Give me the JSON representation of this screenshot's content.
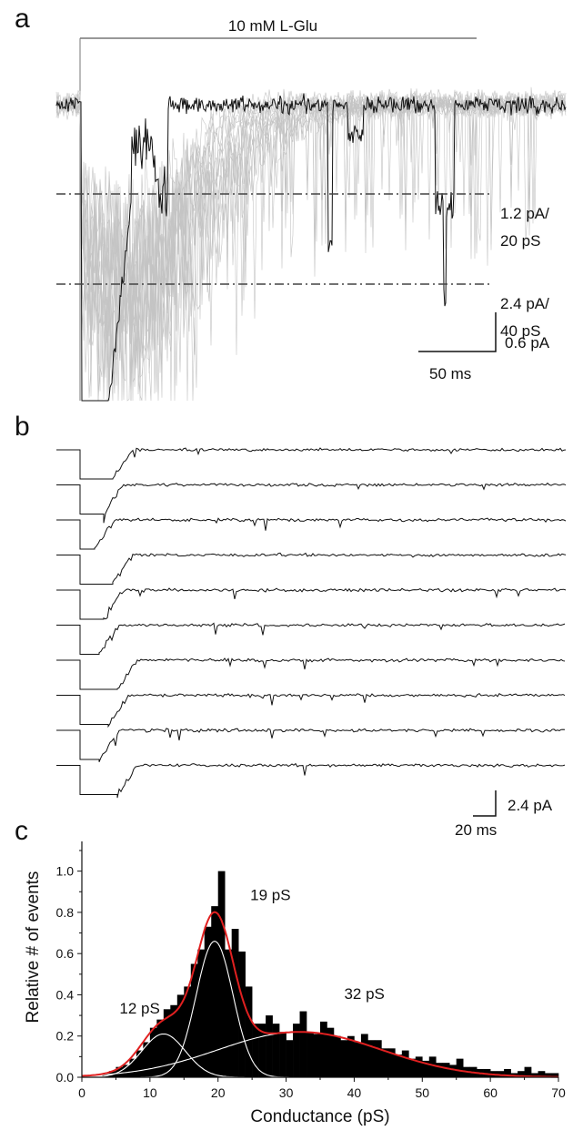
{
  "panel_a": {
    "letter": "a",
    "stim_label": "10 mM L-Glu",
    "level1": "1.2 pA/",
    "level1b": "20 pS",
    "level2": "2.4 pA/",
    "level2b": "40 pS",
    "scale_y": "0.6 pA",
    "scale_x": "50 ms",
    "colors": {
      "trace": "#111111",
      "overlay": "#b8b8b8",
      "dashline": "#444444"
    }
  },
  "panel_b": {
    "letter": "b",
    "sweep_count": 10,
    "scale_y": "2.4 pA",
    "scale_x": "20 ms"
  },
  "panel_c": {
    "letter": "c"
  },
  "chart_data": {
    "type": "bar",
    "xlabel": "Conductance (pS)",
    "ylabel": "Relative # of events",
    "xlim": [
      0,
      70
    ],
    "ylim": [
      0,
      1.1
    ],
    "xticks": [
      0,
      10,
      20,
      30,
      40,
      50,
      60,
      70
    ],
    "yticks": [
      0.0,
      0.2,
      0.4,
      0.6,
      0.8,
      1.0
    ],
    "ytick_labels": [
      "0.0",
      "0.2",
      "0.4",
      "0.6",
      "0.8",
      "1.0"
    ],
    "bin_width": 1,
    "x": [
      3,
      4,
      5,
      6,
      7,
      8,
      9,
      10,
      11,
      12,
      13,
      14,
      15,
      16,
      17,
      18,
      19,
      20,
      21,
      22,
      23,
      24,
      25,
      26,
      27,
      28,
      29,
      30,
      31,
      32,
      33,
      34,
      35,
      36,
      37,
      38,
      39,
      40,
      41,
      42,
      43,
      44,
      45,
      46,
      47,
      48,
      49,
      50,
      51,
      52,
      53,
      54,
      55,
      56,
      57,
      58,
      59,
      60,
      61,
      62,
      63,
      64,
      65,
      66,
      67,
      68,
      69
    ],
    "values": [
      0.02,
      0.03,
      0.05,
      0.06,
      0.09,
      0.13,
      0.17,
      0.24,
      0.28,
      0.33,
      0.35,
      0.4,
      0.44,
      0.55,
      0.62,
      0.73,
      0.83,
      1.0,
      0.62,
      0.72,
      0.61,
      0.44,
      0.26,
      0.26,
      0.3,
      0.26,
      0.22,
      0.18,
      0.26,
      0.32,
      0.22,
      0.21,
      0.27,
      0.24,
      0.2,
      0.18,
      0.2,
      0.17,
      0.21,
      0.18,
      0.18,
      0.14,
      0.14,
      0.11,
      0.13,
      0.09,
      0.1,
      0.08,
      0.1,
      0.07,
      0.07,
      0.06,
      0.09,
      0.05,
      0.05,
      0.04,
      0.04,
      0.03,
      0.03,
      0.04,
      0.02,
      0.03,
      0.05,
      0.02,
      0.03,
      0.02,
      0.02
    ],
    "fit": {
      "total_color": "#e02020",
      "component_color": "#ffffff",
      "components": [
        {
          "label": "12 pS",
          "mean": 12,
          "amp": 0.21,
          "sd": 3.2
        },
        {
          "label": "19 pS",
          "mean": 19.5,
          "amp": 0.66,
          "sd": 2.7
        },
        {
          "label": "32 pS",
          "mean": 32,
          "amp": 0.22,
          "sd": 12
        }
      ]
    }
  }
}
